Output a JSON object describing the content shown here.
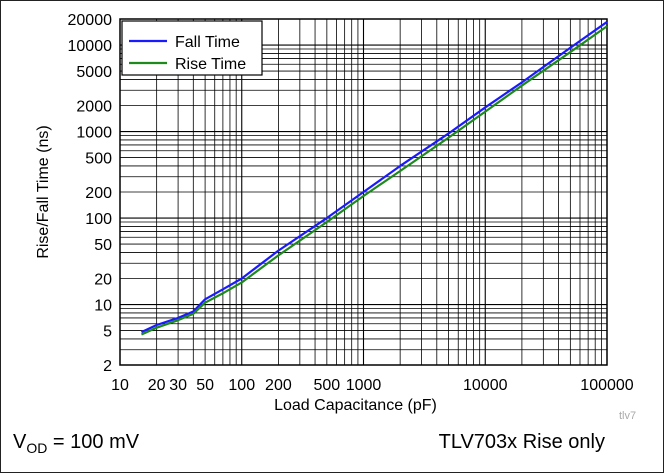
{
  "chart_data": {
    "type": "line",
    "title": "",
    "xlabel": "Load Capacitance (pF)",
    "ylabel": "Rise/Fall Time (ns)",
    "xscale": "log",
    "yscale": "log",
    "xlim": [
      10,
      100000
    ],
    "ylim": [
      2,
      20000
    ],
    "x_ticks": [
      10,
      20,
      30,
      50,
      100,
      200,
      500,
      1000,
      10000,
      100000
    ],
    "x_tick_labels": [
      "10",
      "20",
      "30",
      "50",
      "100",
      "200",
      "500",
      "1000",
      "10000",
      "100000"
    ],
    "y_ticks": [
      2,
      5,
      10,
      20,
      50,
      100,
      200,
      500,
      1000,
      2000,
      5000,
      10000,
      20000
    ],
    "y_tick_labels": [
      "2",
      "5",
      "10",
      "20",
      "50",
      "100",
      "200",
      "500",
      "1000",
      "2000",
      "5000",
      "10000",
      "20000"
    ],
    "grid": true,
    "legend_position": "top-left",
    "series": [
      {
        "name": "Fall Time",
        "color": "#1a1aff",
        "x": [
          15,
          20,
          30,
          40,
          50,
          70,
          100,
          200,
          500,
          1000,
          2000,
          5000,
          10000,
          20000,
          50000,
          100000
        ],
        "y": [
          4.8,
          5.8,
          7.0,
          8.3,
          11.5,
          15,
          20,
          42,
          100,
          200,
          400,
          950,
          1900,
          3700,
          9300,
          18500
        ]
      },
      {
        "name": "Rise Time",
        "color": "#1e8a1e",
        "x": [
          15,
          20,
          30,
          40,
          50,
          70,
          100,
          200,
          500,
          1000,
          2000,
          5000,
          10000,
          20000,
          50000,
          100000
        ],
        "y": [
          4.5,
          5.4,
          6.6,
          7.8,
          10.5,
          13.5,
          18,
          37,
          90,
          180,
          350,
          850,
          1700,
          3400,
          8300,
          16500
        ]
      }
    ]
  },
  "figure_id": "tlv7",
  "notes": {
    "left_prefix": "V",
    "left_subscript": "OD",
    "left_suffix": " = 100 mV",
    "right": "TLV703x Rise only"
  }
}
